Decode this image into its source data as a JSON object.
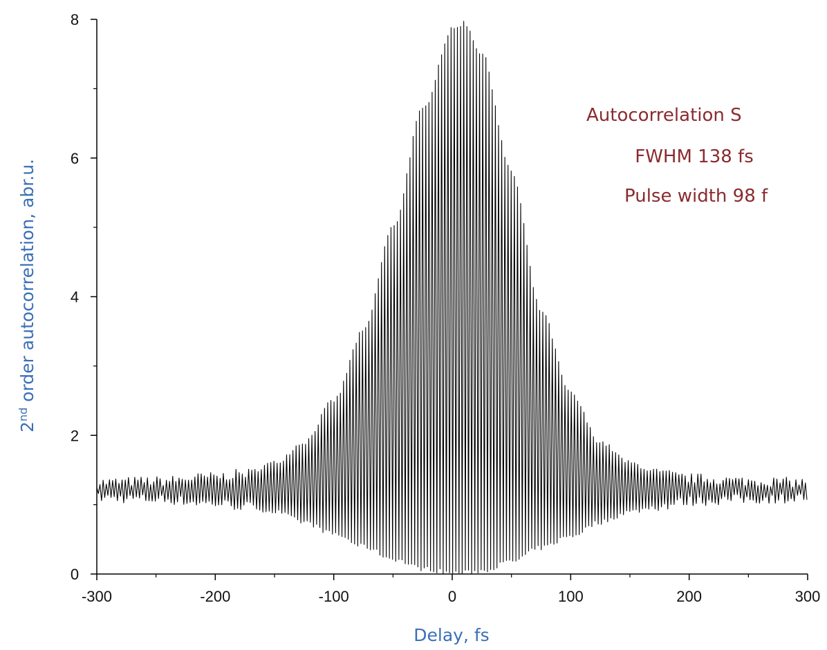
{
  "chart_data": {
    "type": "line",
    "xlabel": "Delay, fs",
    "ylabel": {
      "prefix": "2",
      "superscript": "nd",
      "rest": " order autocorrelation, abr.u."
    },
    "x_ticks": [
      -300,
      -200,
      -100,
      0,
      100,
      200,
      300
    ],
    "x_tick_labels": [
      "-300",
      "-200",
      "-100",
      "0",
      "100",
      "200",
      "300"
    ],
    "y_ticks": [
      0,
      2,
      4,
      6,
      8
    ],
    "y_tick_labels": [
      "0",
      "2",
      "4",
      "6",
      "8"
    ],
    "xlim": [
      -300,
      300
    ],
    "ylim": [
      0,
      8
    ],
    "grid": false,
    "annotations": [
      "Autocorrelation S",
      "FWHM 138 fs",
      "Pulse width 98 f"
    ],
    "series": [
      {
        "color": "#000000",
        "fringe_period_fs": 2.67,
        "baseline": 1.2,
        "noise_amplitude": 0.06,
        "envelope_center_fs": 5,
        "envelope_fwhm_fs": 138,
        "points": [
          {
            "x": -300,
            "upper": 1.32,
            "lower": 1.1
          },
          {
            "x": -250,
            "upper": 1.34,
            "lower": 1.08
          },
          {
            "x": -200,
            "upper": 1.4,
            "lower": 1.02
          },
          {
            "x": -175,
            "upper": 1.45,
            "lower": 0.98
          },
          {
            "x": -150,
            "upper": 1.6,
            "lower": 0.9
          },
          {
            "x": -125,
            "upper": 1.9,
            "lower": 0.75
          },
          {
            "x": -100,
            "upper": 2.5,
            "lower": 0.58
          },
          {
            "x": -75,
            "upper": 3.5,
            "lower": 0.4
          },
          {
            "x": -50,
            "upper": 5.0,
            "lower": 0.22
          },
          {
            "x": -25,
            "upper": 6.7,
            "lower": 0.08
          },
          {
            "x": 0,
            "upper": 7.85,
            "lower": 0.02
          },
          {
            "x": 10,
            "upper": 7.95,
            "lower": 0.02
          },
          {
            "x": 25,
            "upper": 7.5,
            "lower": 0.05
          },
          {
            "x": 50,
            "upper": 5.8,
            "lower": 0.18
          },
          {
            "x": 75,
            "upper": 3.8,
            "lower": 0.38
          },
          {
            "x": 100,
            "upper": 2.6,
            "lower": 0.55
          },
          {
            "x": 125,
            "upper": 1.9,
            "lower": 0.75
          },
          {
            "x": 150,
            "upper": 1.6,
            "lower": 0.9
          },
          {
            "x": 175,
            "upper": 1.45,
            "lower": 0.98
          },
          {
            "x": 200,
            "upper": 1.38,
            "lower": 1.05
          },
          {
            "x": 250,
            "upper": 1.34,
            "lower": 1.08
          },
          {
            "x": 300,
            "upper": 1.32,
            "lower": 1.1
          }
        ]
      }
    ],
    "colors": {
      "axis": "#000000",
      "trace": "#000000",
      "axis_title": "#3b6fb6",
      "annotation": "#8a2b2f"
    }
  }
}
